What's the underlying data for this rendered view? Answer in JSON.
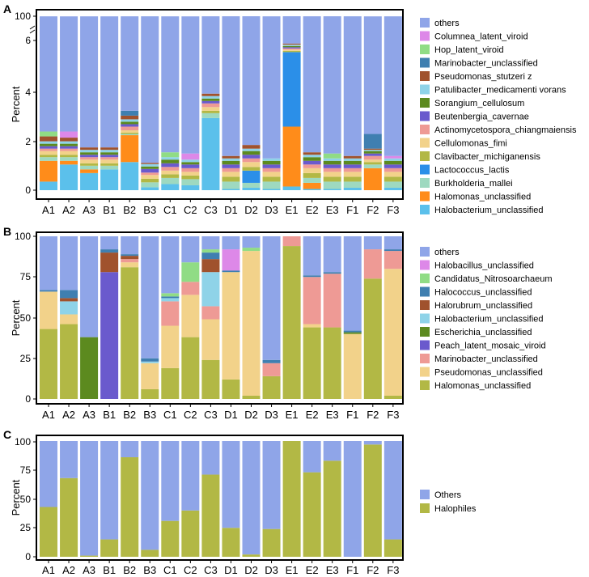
{
  "figure": {
    "description_panels": [
      "A",
      "B",
      "C"
    ]
  },
  "chart_data": [
    {
      "panel": "A",
      "type": "bar",
      "stacked": true,
      "ylabel": "Percent",
      "xlabel": "",
      "ylim": [
        0,
        100
      ],
      "axis_break": true,
      "y_ticks": [
        "0",
        "2",
        "4",
        "6",
        "100"
      ],
      "categories": [
        "A1",
        "A2",
        "A3",
        "B1",
        "B2",
        "B3",
        "C1",
        "C2",
        "C3",
        "D1",
        "D2",
        "D3",
        "E1",
        "E2",
        "E3",
        "F1",
        "F2",
        "F3"
      ],
      "legend_title": "",
      "legend_position": "right",
      "series": [
        {
          "name": "Halobacterium_unclassified",
          "color": "#5BC0EB",
          "values": [
            0.35,
            1.05,
            0.7,
            0.85,
            1.15,
            0.12,
            0.25,
            0.2,
            2.95,
            0.05,
            0.1,
            0.05,
            0.15,
            0.05,
            0.05,
            0.1,
            0.0,
            0.1
          ]
        },
        {
          "name": "Halomonas_unclassified",
          "color": "#FF8C1A",
          "values": [
            0.85,
            0.15,
            0.15,
            0.0,
            1.1,
            0.0,
            0.0,
            0.0,
            0.0,
            0.0,
            0.0,
            0.0,
            2.45,
            0.25,
            0.0,
            0.0,
            0.9,
            0.0
          ]
        },
        {
          "name": "Burkholderia_mallei",
          "color": "#9ED9C0",
          "values": [
            0.15,
            0.15,
            0.15,
            0.15,
            0.05,
            0.2,
            0.25,
            0.25,
            0.2,
            0.3,
            0.2,
            0.3,
            0.0,
            0.2,
            0.3,
            0.25,
            0.15,
            0.25
          ]
        },
        {
          "name": "Lactococcus_lactis",
          "color": "#2B8FE8",
          "values": [
            0.0,
            0.0,
            0.0,
            0.0,
            0.0,
            0.0,
            0.0,
            0.0,
            0.0,
            0.0,
            0.5,
            0.0,
            3.05,
            0.0,
            0.0,
            0.0,
            0.0,
            0.0
          ]
        },
        {
          "name": "Clavibacter_michiganensis",
          "color": "#B2B845",
          "values": [
            0.1,
            0.1,
            0.1,
            0.1,
            0.05,
            0.15,
            0.15,
            0.15,
            0.1,
            0.2,
            0.15,
            0.2,
            0.05,
            0.2,
            0.2,
            0.2,
            0.1,
            0.2
          ]
        },
        {
          "name": "Cellulomonas_fimi",
          "color": "#F2D28A",
          "values": [
            0.15,
            0.15,
            0.15,
            0.15,
            0.1,
            0.15,
            0.15,
            0.15,
            0.15,
            0.2,
            0.2,
            0.2,
            0.05,
            0.2,
            0.2,
            0.2,
            0.1,
            0.2
          ]
        },
        {
          "name": "Actinomycetospora_chiangmaiensis",
          "color": "#EE9A95",
          "values": [
            0.1,
            0.1,
            0.1,
            0.1,
            0.15,
            0.1,
            0.15,
            0.15,
            0.15,
            0.15,
            0.15,
            0.15,
            0.05,
            0.15,
            0.15,
            0.15,
            0.15,
            0.15
          ]
        },
        {
          "name": "Beutenbergia_cavernae",
          "color": "#6A5ACD",
          "values": [
            0.1,
            0.1,
            0.1,
            0.1,
            0.1,
            0.15,
            0.15,
            0.15,
            0.1,
            0.15,
            0.15,
            0.15,
            0.05,
            0.15,
            0.15,
            0.15,
            0.1,
            0.15
          ]
        },
        {
          "name": "Sorangium_cellulosum",
          "color": "#5C8A1F",
          "values": [
            0.1,
            0.1,
            0.1,
            0.1,
            0.1,
            0.1,
            0.15,
            0.1,
            0.1,
            0.15,
            0.15,
            0.15,
            0.05,
            0.15,
            0.15,
            0.15,
            0.1,
            0.15
          ]
        },
        {
          "name": "Patulibacter_medicamenti vorans",
          "color": "#8FD3E8",
          "values": [
            0.1,
            0.1,
            0.1,
            0.1,
            0.1,
            0.1,
            0.1,
            0.1,
            0.1,
            0.1,
            0.1,
            0.1,
            0.05,
            0.1,
            0.1,
            0.1,
            0.05,
            0.1
          ]
        },
        {
          "name": "Pseudomonas_stutzeri z",
          "color": "#A0522D",
          "values": [
            0.2,
            0.15,
            0.1,
            0.1,
            0.15,
            0.05,
            0.0,
            0.0,
            0.1,
            0.1,
            0.15,
            0.0,
            0.05,
            0.1,
            0.0,
            0.1,
            0.05,
            0.0
          ]
        },
        {
          "name": "Marinobacter_unclassified",
          "color": "#3F7FB0",
          "values": [
            0.0,
            0.0,
            0.0,
            0.0,
            0.2,
            0.0,
            0.0,
            0.0,
            0.0,
            0.0,
            0.0,
            0.0,
            0.0,
            0.0,
            0.0,
            0.0,
            0.6,
            0.0
          ]
        },
        {
          "name": "Hop_latent_viroid",
          "color": "#90DC85",
          "values": [
            0.2,
            0.0,
            0.0,
            0.0,
            0.0,
            0.0,
            0.2,
            0.0,
            0.0,
            0.0,
            0.0,
            0.0,
            0.05,
            0.0,
            0.2,
            0.0,
            0.0,
            0.0
          ]
        },
        {
          "name": "Columnea_latent_viroid",
          "color": "#DD88E8",
          "values": [
            0.0,
            0.25,
            0.0,
            0.0,
            0.0,
            0.0,
            0.0,
            0.25,
            0.0,
            0.0,
            0.0,
            0.0,
            0.05,
            0.0,
            0.0,
            0.0,
            0.0,
            0.1
          ]
        },
        {
          "name": "others",
          "color": "#8FA5E8",
          "values": [
            97.1,
            97.0,
            97.7,
            97.7,
            96.3,
            98.5,
            97.9,
            97.9,
            95.7,
            98.3,
            97.9,
            98.2,
            93.65,
            98.1,
            98.2,
            98.2,
            97.1,
            98.1
          ]
        }
      ]
    },
    {
      "panel": "B",
      "type": "bar",
      "stacked": true,
      "ylabel": "Percent",
      "xlabel": "",
      "ylim": [
        0,
        100
      ],
      "y_ticks": [
        "0",
        "25",
        "50",
        "75",
        "100"
      ],
      "categories": [
        "A1",
        "A2",
        "A3",
        "B1",
        "B2",
        "B3",
        "C1",
        "C2",
        "C3",
        "D1",
        "D2",
        "D3",
        "E1",
        "E2",
        "E3",
        "F1",
        "F2",
        "F3"
      ],
      "legend_title": "",
      "legend_position": "right",
      "series": [
        {
          "name": "Halomonas_unclassified",
          "color": "#B2B845",
          "values": [
            43,
            46,
            0,
            0,
            81,
            6,
            19,
            38,
            24,
            12,
            2,
            14,
            94,
            44,
            44,
            0,
            74,
            2
          ]
        },
        {
          "name": "Pseudomonas_unclassified",
          "color": "#F2D28A",
          "values": [
            23,
            6,
            0,
            0,
            3,
            16,
            26,
            26,
            25,
            66,
            89,
            0,
            0,
            2,
            0,
            40,
            0,
            78
          ]
        },
        {
          "name": "Marinobacter_unclassified",
          "color": "#EE9A95",
          "values": [
            0,
            0,
            0,
            0,
            2,
            0,
            15,
            8,
            8,
            0,
            0,
            8,
            6,
            29,
            33,
            0,
            18,
            11
          ]
        },
        {
          "name": "Peach_latent_mosaic_viroid",
          "color": "#6A5ACD",
          "values": [
            0,
            0,
            0,
            78,
            0,
            0,
            0,
            0,
            0,
            0,
            0,
            0,
            0,
            0,
            0,
            0,
            0,
            0
          ]
        },
        {
          "name": "Escherichia_unclassified",
          "color": "#5C8A1F",
          "values": [
            0,
            0,
            38,
            0,
            0,
            0,
            0,
            0,
            0,
            0,
            0,
            0,
            0,
            0,
            0,
            1,
            0,
            0
          ]
        },
        {
          "name": "Halobacterium_unclassified",
          "color": "#8FD3E8",
          "values": [
            0,
            8,
            0,
            0,
            0,
            1,
            2,
            0,
            21,
            0,
            0,
            0,
            0,
            0,
            0,
            0,
            0,
            0
          ]
        },
        {
          "name": "Halorubrum_unclassified",
          "color": "#A0522D",
          "values": [
            0,
            2,
            0,
            12,
            2,
            0,
            0,
            0,
            8,
            0,
            0,
            0,
            0,
            0,
            0,
            0,
            0,
            0
          ]
        },
        {
          "name": "Halococcus_unclassified",
          "color": "#3F7FB0",
          "values": [
            1,
            5,
            0,
            2,
            1,
            2,
            1,
            0,
            4,
            1,
            0,
            2,
            0,
            1,
            1,
            1,
            0,
            1
          ]
        },
        {
          "name": "Candidatus_Nitrosoarchaeum",
          "color": "#90DC85",
          "values": [
            0,
            0,
            0,
            0,
            0,
            0,
            2,
            12,
            2,
            0,
            2,
            0,
            0,
            0,
            0,
            0,
            0,
            0
          ]
        },
        {
          "name": "Halobacillus_unclassified",
          "color": "#DD88E8",
          "values": [
            0,
            0,
            0,
            0,
            0,
            0,
            0,
            0,
            0,
            13,
            0,
            0,
            0,
            0,
            0,
            0,
            0,
            0
          ]
        },
        {
          "name": "others",
          "color": "#8FA5E8",
          "values": [
            33,
            33,
            62,
            8,
            11,
            75,
            35,
            16,
            8,
            8,
            7,
            76,
            0,
            24,
            22,
            58,
            8,
            8
          ]
        }
      ]
    },
    {
      "panel": "C",
      "type": "bar",
      "stacked": true,
      "ylabel": "Percent",
      "xlabel": "",
      "ylim": [
        0,
        100
      ],
      "y_ticks": [
        "0",
        "25",
        "50",
        "75",
        "100"
      ],
      "categories": [
        "A1",
        "A2",
        "A3",
        "B1",
        "B2",
        "B3",
        "C1",
        "C2",
        "C3",
        "D1",
        "D2",
        "D3",
        "E1",
        "E2",
        "E3",
        "F1",
        "F2",
        "F3"
      ],
      "legend_title": "",
      "legend_position": "right",
      "series": [
        {
          "name": "Halophiles",
          "color": "#B2B845",
          "values": [
            43,
            68,
            1,
            15,
            86,
            6,
            31,
            40,
            71,
            25,
            2,
            24,
            100,
            73,
            83,
            0,
            97,
            15
          ]
        },
        {
          "name": "Others",
          "color": "#8FA5E8",
          "values": [
            57,
            32,
            99,
            85,
            14,
            94,
            69,
            60,
            29,
            75,
            98,
            76,
            0,
            27,
            17,
            100,
            3,
            85
          ]
        }
      ]
    }
  ]
}
